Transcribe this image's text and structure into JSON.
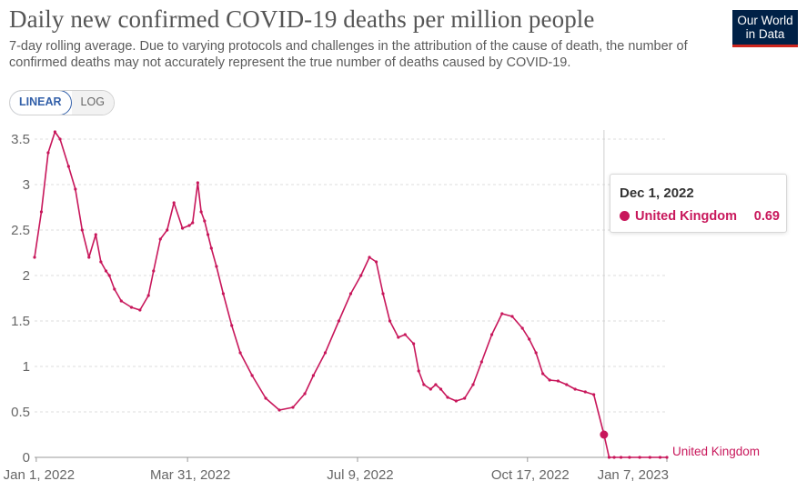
{
  "header": {
    "title": "Daily new confirmed COVID-19 deaths per million people",
    "subtitle": "7-day rolling average. Due to varying protocols and challenges in the attribution of the cause of death, the number of confirmed deaths may not accurately represent the true number of deaths caused by COVID-19.",
    "logo_line1": "Our World",
    "logo_line2": "in Data"
  },
  "scale_toggle": {
    "linear_label": "LINEAR",
    "log_label": "LOG",
    "selected": "LINEAR"
  },
  "tooltip": {
    "date": "Dec 1, 2022",
    "series": "United Kingdom",
    "value": "0.69"
  },
  "colors": {
    "series": "#c8175b",
    "grid": "#dddddd",
    "logo_bg": "#002147",
    "logo_accent": "#ce261e"
  },
  "chart_data": {
    "type": "line",
    "title": "Daily new confirmed COVID-19 deaths per million people",
    "xlabel": "",
    "ylabel": "",
    "ylim": [
      0,
      3.5
    ],
    "yticks": [
      "0",
      "0.5",
      "1",
      "1.5",
      "2",
      "2.5",
      "3",
      "3.5"
    ],
    "xticks": [
      "Jan 1, 2022",
      "Mar 31, 2022",
      "Jul 9, 2022",
      "Oct 17, 2022",
      "Jan 7, 2023"
    ],
    "grid": true,
    "series": [
      {
        "name": "United Kingdom",
        "x": [
          "2021-12-31",
          "2022-01-04",
          "2022-01-08",
          "2022-01-12",
          "2022-01-15",
          "2022-01-20",
          "2022-01-24",
          "2022-01-28",
          "2022-02-01",
          "2022-02-05",
          "2022-02-08",
          "2022-02-11",
          "2022-02-13",
          "2022-02-16",
          "2022-02-20",
          "2022-02-26",
          "2022-03-03",
          "2022-03-08",
          "2022-03-11",
          "2022-03-15",
          "2022-03-19",
          "2022-03-23",
          "2022-03-28",
          "2022-04-01",
          "2022-04-03",
          "2022-04-06",
          "2022-04-08",
          "2022-04-10",
          "2022-04-12",
          "2022-04-14",
          "2022-04-17",
          "2022-04-21",
          "2022-04-26",
          "2022-05-01",
          "2022-05-08",
          "2022-05-16",
          "2022-05-24",
          "2022-06-01",
          "2022-06-08",
          "2022-06-13",
          "2022-06-20",
          "2022-06-28",
          "2022-07-05",
          "2022-07-11",
          "2022-07-16",
          "2022-07-20",
          "2022-07-24",
          "2022-07-28",
          "2022-08-02",
          "2022-08-06",
          "2022-08-11",
          "2022-08-14",
          "2022-08-17",
          "2022-08-21",
          "2022-08-24",
          "2022-08-27",
          "2022-08-31",
          "2022-09-05",
          "2022-09-10",
          "2022-09-15",
          "2022-09-20",
          "2022-09-26",
          "2022-10-02",
          "2022-10-08",
          "2022-10-14",
          "2022-10-18",
          "2022-10-22",
          "2022-10-26",
          "2022-10-30",
          "2022-11-04",
          "2022-11-09",
          "2022-11-14",
          "2022-11-20",
          "2022-11-25",
          "2022-12-01",
          "2022-12-04",
          "2022-12-07",
          "2022-12-11",
          "2022-12-16",
          "2022-12-22",
          "2022-12-28",
          "2023-01-03",
          "2023-01-07"
        ],
        "values": [
          2.2,
          2.7,
          3.35,
          3.58,
          3.5,
          3.2,
          2.95,
          2.5,
          2.2,
          2.45,
          2.15,
          2.05,
          2.0,
          1.85,
          1.72,
          1.65,
          1.62,
          1.78,
          2.05,
          2.4,
          2.5,
          2.8,
          2.52,
          2.55,
          2.58,
          3.02,
          2.7,
          2.6,
          2.45,
          2.3,
          2.1,
          1.8,
          1.45,
          1.15,
          0.9,
          0.65,
          0.52,
          0.55,
          0.7,
          0.9,
          1.15,
          1.5,
          1.8,
          2.0,
          2.2,
          2.15,
          1.8,
          1.5,
          1.32,
          1.35,
          1.25,
          0.95,
          0.8,
          0.75,
          0.8,
          0.75,
          0.66,
          0.62,
          0.65,
          0.8,
          1.05,
          1.35,
          1.58,
          1.55,
          1.42,
          1.3,
          1.15,
          0.92,
          0.85,
          0.84,
          0.8,
          0.75,
          0.72,
          0.69,
          0.25,
          0.0,
          0.0,
          0.0,
          0.0,
          0.0,
          0.0,
          0.0,
          0.0
        ]
      }
    ]
  }
}
